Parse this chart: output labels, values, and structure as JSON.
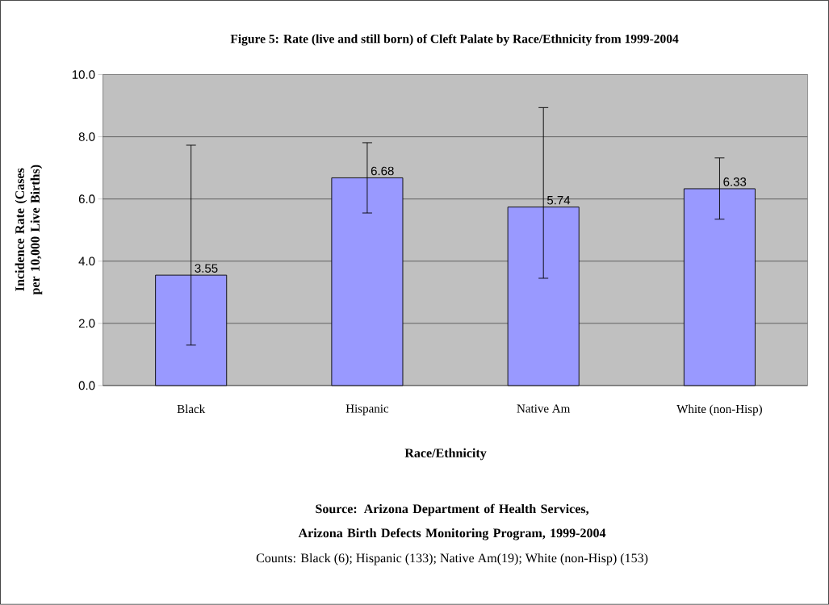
{
  "chart_data": {
    "type": "bar",
    "title": "Figure 5: Rate (live and still born) of Cleft Palate by Race/Ethnicity from 1999-2004",
    "xlabel": "Race/Ethnicity",
    "ylabel": "Incidence Rate (Cases per 10,000 Live Births)",
    "categories": [
      "Black",
      "Hispanic",
      "Native Am",
      "White (non-Hisp)"
    ],
    "values": [
      3.55,
      6.68,
      5.74,
      6.33
    ],
    "errors": [
      [
        1.3,
        7.73
      ],
      [
        5.55,
        7.81
      ],
      [
        3.45,
        8.94
      ],
      [
        5.35,
        7.32
      ]
    ],
    "color": "#9999ff",
    "data_labels": true,
    "ylim": [
      0,
      10
    ],
    "yticks": [
      {
        "value": 0,
        "label": "0.0"
      },
      {
        "value": 2,
        "label": "2.0"
      },
      {
        "value": 4,
        "label": "4.0"
      },
      {
        "value": 6,
        "label": "6.0"
      },
      {
        "value": 8,
        "label": "8.0"
      },
      {
        "value": 10,
        "label": "10.0"
      }
    ],
    "grid": "y",
    "annotations": [
      "Source: Arizona Department of Health Services, Arizona Birth Defects Monitoring Program, 1999-2004",
      "Counts: Black (6); Hispanic (133); Native Am(19); White (non-Hisp) (153)"
    ]
  }
}
